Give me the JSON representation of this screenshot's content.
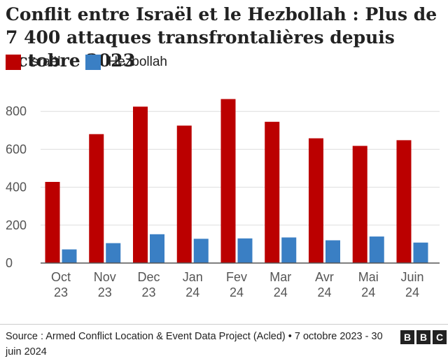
{
  "title": "Conflit entre Israël et le Hezbollah : Plus de 7 400 attaques transfrontalières depuis octobre 2023",
  "legend": [
    {
      "label": "Israël",
      "color": "#bb0000"
    },
    {
      "label": "Hezbollah",
      "color": "#3a7fc4"
    }
  ],
  "source": "Source : Armed Conflict Location & Event Data Project (Acled) • 7 octobre 2023 - 30 juin 2024",
  "logo": [
    "B",
    "B",
    "C"
  ],
  "chart_data": {
    "type": "bar",
    "categories": [
      [
        "Oct",
        "23"
      ],
      [
        "Nov",
        "23"
      ],
      [
        "Dec",
        "23"
      ],
      [
        "Jan",
        "24"
      ],
      [
        "Fev",
        "24"
      ],
      [
        "Mar",
        "24"
      ],
      [
        "Avr",
        "24"
      ],
      [
        "Mai",
        "24"
      ],
      [
        "Juin",
        "24"
      ]
    ],
    "series": [
      {
        "name": "Israël",
        "color": "#bb0000",
        "values": [
          428,
          680,
          825,
          725,
          865,
          745,
          658,
          618,
          648
        ]
      },
      {
        "name": "Hezbollah",
        "color": "#3a7fc4",
        "values": [
          72,
          105,
          152,
          128,
          130,
          135,
          120,
          140,
          108
        ]
      }
    ],
    "yticks": [
      0,
      200,
      400,
      600,
      800
    ],
    "ylim": [
      0,
      900
    ],
    "grid": true,
    "legend_position": "top-left"
  }
}
